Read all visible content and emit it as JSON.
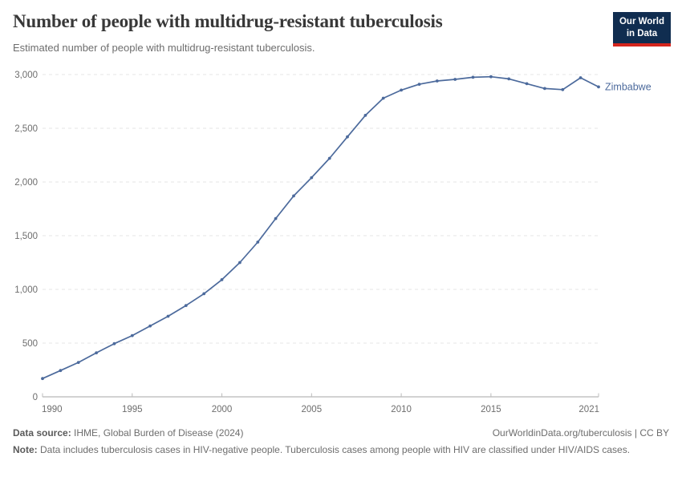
{
  "header": {
    "title": "Number of people with multidrug-resistant tuberculosis",
    "subtitle": "Estimated number of people with multidrug-resistant tuberculosis.",
    "logo": {
      "line1": "Our World",
      "line2": "in Data",
      "bg_color": "#102d50",
      "accent_color": "#d4251d"
    }
  },
  "chart_data": {
    "type": "line",
    "title": "Number of people with multidrug-resistant tuberculosis",
    "subtitle": "Estimated number of people with multidrug-resistant tuberculosis.",
    "xlabel": "",
    "ylabel": "",
    "xlim": [
      1990,
      2021
    ],
    "ylim": [
      0,
      3000
    ],
    "grid": "horizontal-dashed",
    "legend_position": "end-of-line-label",
    "x_ticks": [
      1990,
      1995,
      2000,
      2005,
      2010,
      2015,
      2021
    ],
    "y_ticks": [
      0,
      500,
      1000,
      1500,
      2000,
      2500,
      3000
    ],
    "y_tick_labels": [
      "0",
      "500",
      "1,000",
      "1,500",
      "2,000",
      "2,500",
      "3,000"
    ],
    "series": [
      {
        "name": "Zimbabwe",
        "color": "#4c6a9c",
        "x": [
          1990,
          1991,
          1992,
          1993,
          1994,
          1995,
          1996,
          1997,
          1998,
          1999,
          2000,
          2001,
          2002,
          2003,
          2004,
          2005,
          2006,
          2007,
          2008,
          2009,
          2010,
          2011,
          2012,
          2013,
          2014,
          2015,
          2016,
          2017,
          2018,
          2019,
          2020,
          2021
        ],
        "values": [
          170,
          245,
          320,
          410,
          495,
          570,
          660,
          750,
          850,
          960,
          1090,
          1250,
          1440,
          1660,
          1870,
          2040,
          2220,
          2420,
          2620,
          2780,
          2855,
          2910,
          2940,
          2955,
          2975,
          2980,
          2960,
          2915,
          2870,
          2860,
          2970,
          2885
        ]
      }
    ]
  },
  "colors": {
    "line": "#4c6a9c",
    "gridline": "#e4e4e4",
    "axis_line": "#a5a5a5",
    "tick_mark": "#bcbcbc",
    "tick_label": "#6d6d6d"
  },
  "footer": {
    "datasource_label": "Data source:",
    "datasource_value": " IHME, Global Burden of Disease (2024)",
    "link_text": "OurWorldinData.org/tuberculosis | CC BY",
    "note_label": "Note:",
    "note_text": " Data includes tuberculosis cases in HIV-negative people. Tuberculosis cases among people with HIV are classified under HIV/AIDS cases."
  }
}
